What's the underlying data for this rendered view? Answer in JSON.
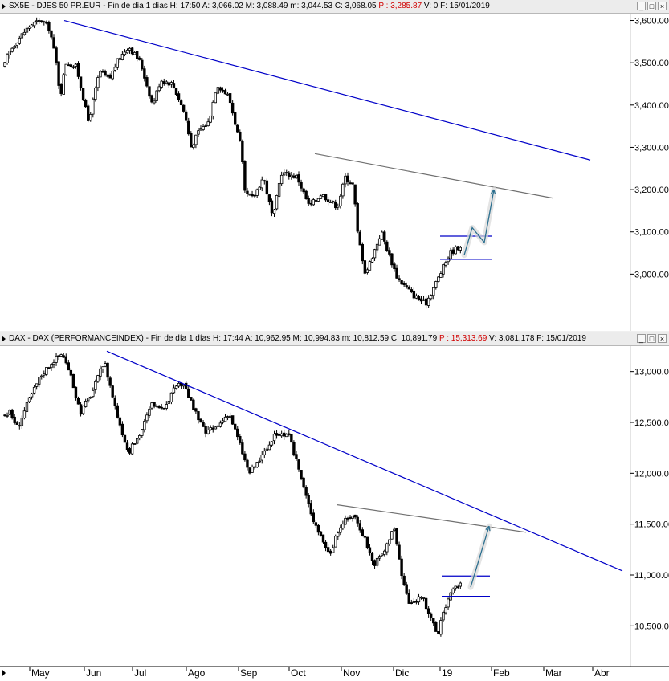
{
  "top": {
    "symbol": "SX5E",
    "name": "DJES 50 PR.EUR",
    "period": "Fin de día 1 días",
    "H": "17:50",
    "A": "3,066.02",
    "M": "3,088.49",
    "m": "3,044.53",
    "C": "3,068.05",
    "P": "3,285.87",
    "V": "0",
    "F": "15/01/2019"
  },
  "bottom": {
    "symbol": "DAX",
    "name": "DAX (PERFORMANCEINDEX)",
    "period": "Fin de día 1 días",
    "H": "17:44",
    "A": "10,962.95",
    "M": "10,994.83",
    "m": "10,812.59",
    "C": "10,891.79",
    "P": "15,313.69",
    "V": "3,081,178",
    "F": "15/01/2019"
  },
  "window_buttons": {
    "min": "_",
    "max": "□",
    "close": "×"
  },
  "chart_data": [
    {
      "type": "candlestick",
      "title": "SX5E - DJES 50 PR.EUR",
      "ylim": [
        2900,
        3620
      ],
      "yticks": [
        "3,600.00",
        "3,500.00",
        "3,400.00",
        "3,300.00",
        "3,200.00",
        "3,100.00",
        "3,000.00"
      ],
      "ytick_values": [
        3600,
        3500,
        3400,
        3300,
        3200,
        3100,
        3000
      ],
      "colors": {
        "trend": "#0000c8",
        "channel": "#707070",
        "marker": "#0000c8",
        "projection": "#2c6f8f"
      },
      "series_keypoints": [
        [
          3460,
          0
        ],
        [
          3520,
          10
        ],
        [
          3550,
          20
        ],
        [
          3590,
          38
        ],
        [
          3600,
          52
        ],
        [
          3580,
          62
        ],
        [
          3500,
          70
        ],
        [
          3420,
          75
        ],
        [
          3500,
          82
        ],
        [
          3490,
          95
        ],
        [
          3450,
          100
        ],
        [
          3360,
          110
        ],
        [
          3480,
          124
        ],
        [
          3460,
          136
        ],
        [
          3500,
          145
        ],
        [
          3540,
          160
        ],
        [
          3500,
          175
        ],
        [
          3400,
          190
        ],
        [
          3460,
          200
        ],
        [
          3450,
          215
        ],
        [
          3380,
          230
        ],
        [
          3300,
          238
        ],
        [
          3340,
          248
        ],
        [
          3360,
          260
        ],
        [
          3450,
          270
        ],
        [
          3420,
          285
        ],
        [
          3300,
          300
        ],
        [
          3190,
          305
        ],
        [
          3180,
          315
        ],
        [
          3230,
          328
        ],
        [
          3130,
          340
        ],
        [
          3240,
          350
        ],
        [
          3230,
          370
        ],
        [
          3160,
          385
        ],
        [
          3190,
          400
        ],
        [
          3160,
          420
        ],
        [
          3230,
          430
        ],
        [
          3210,
          440
        ],
        [
          3100,
          445
        ],
        [
          3000,
          455
        ],
        [
          3100,
          475
        ],
        [
          3070,
          480
        ],
        [
          2990,
          495
        ],
        [
          2950,
          515
        ],
        [
          2930,
          530
        ],
        [
          3000,
          548
        ],
        [
          3050,
          560
        ],
        [
          3070,
          575
        ],
        [
          3068,
          585
        ]
      ],
      "trendline": {
        "from": [
          3600,
          80
        ],
        "to": [
          3270,
          735
        ]
      },
      "channel_line": {
        "from": [
          3285,
          392
        ],
        "to": [
          3180,
          688
        ]
      },
      "range_box": {
        "high": 3090,
        "low": 3035,
        "x_from": 548,
        "x_to": 612
      },
      "projection_path": {
        "x": [
          578,
          588,
          603,
          615
        ],
        "y": [
          3045,
          3110,
          3075,
          3200
        ]
      }
    },
    {
      "type": "candlestick",
      "title": "DAX - DAX (PERFORMANCEINDEX)",
      "ylim": [
        10100,
        13250
      ],
      "yticks": [
        "13,000.00",
        "12,500.00",
        "12,000.00",
        "11,500.00",
        "11,000.00",
        "10,500.00"
      ],
      "ytick_values": [
        13000,
        12500,
        12000,
        11500,
        11000,
        10500
      ],
      "x_months": [
        "May",
        "Jun",
        "Jul",
        "Ago",
        "Sep",
        "Oct",
        "Nov",
        "Dic",
        "19",
        "Feb",
        "Mar",
        "Abr"
      ],
      "colors": {
        "trend": "#0000c8",
        "channel": "#707070",
        "marker": "#0000c8",
        "projection": "#2c6f8f"
      },
      "series_keypoints": [
        [
          12550,
          0
        ],
        [
          12600,
          12
        ],
        [
          12450,
          22
        ],
        [
          12700,
          35
        ],
        [
          12950,
          50
        ],
        [
          13100,
          65
        ],
        [
          13180,
          78
        ],
        [
          12900,
          90
        ],
        [
          12600,
          100
        ],
        [
          12800,
          115
        ],
        [
          13100,
          130
        ],
        [
          12600,
          145
        ],
        [
          12200,
          160
        ],
        [
          12400,
          175
        ],
        [
          12700,
          190
        ],
        [
          12600,
          200
        ],
        [
          12800,
          215
        ],
        [
          12900,
          228
        ],
        [
          12650,
          240
        ],
        [
          12400,
          255
        ],
        [
          12450,
          270
        ],
        [
          12600,
          285
        ],
        [
          12300,
          298
        ],
        [
          12000,
          310
        ],
        [
          12150,
          325
        ],
        [
          12400,
          345
        ],
        [
          12350,
          360
        ],
        [
          12100,
          370
        ],
        [
          11800,
          380
        ],
        [
          11550,
          390
        ],
        [
          11200,
          410
        ],
        [
          11500,
          425
        ],
        [
          11600,
          440
        ],
        [
          11350,
          455
        ],
        [
          11100,
          465
        ],
        [
          11250,
          480
        ],
        [
          11500,
          490
        ],
        [
          11000,
          500
        ],
        [
          10700,
          510
        ],
        [
          10800,
          525
        ],
        [
          10600,
          535
        ],
        [
          10400,
          545
        ],
        [
          10600,
          550
        ],
        [
          10800,
          560
        ],
        [
          10950,
          575
        ],
        [
          10890,
          585
        ]
      ],
      "trendline": {
        "from": [
          13200,
          133
        ],
        "to": [
          11040,
          775
        ]
      },
      "channel_line": {
        "from": [
          11690,
          420
        ],
        "to": [
          11420,
          655
        ]
      },
      "range_box": {
        "high": 10990,
        "low": 10790,
        "x_from": 550,
        "x_to": 610
      },
      "projection_path": {
        "x": [
          586,
          609
        ],
        "y": [
          10880,
          11480
        ]
      }
    }
  ]
}
